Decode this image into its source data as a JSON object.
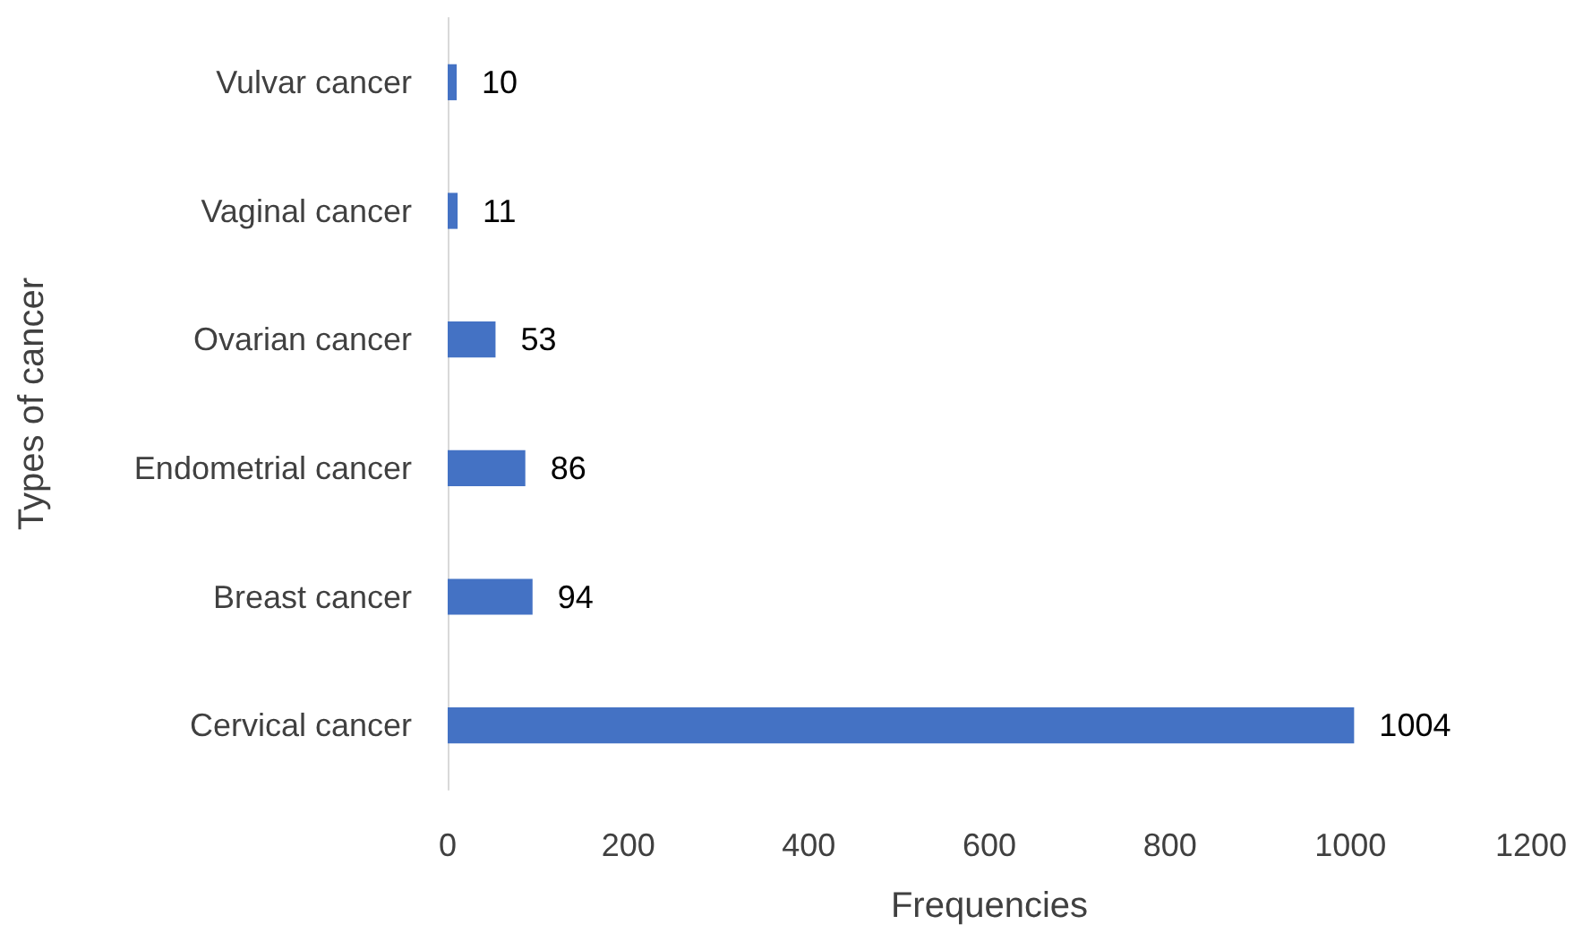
{
  "chart_data": {
    "type": "bar",
    "orientation": "horizontal",
    "categories": [
      "Vulvar cancer",
      "Vaginal cancer",
      "Ovarian cancer",
      "Endometrial cancer",
      "Breast cancer",
      "Cervical cancer"
    ],
    "values": [
      10,
      11,
      53,
      86,
      94,
      1004
    ],
    "color": "#4472c4",
    "xlim": [
      0,
      1200
    ],
    "xticks": [
      0,
      200,
      400,
      600,
      800,
      1000,
      1200
    ],
    "xlabel": "Frequencies",
    "ylabel": "Types of cancer",
    "data_labels": true
  }
}
